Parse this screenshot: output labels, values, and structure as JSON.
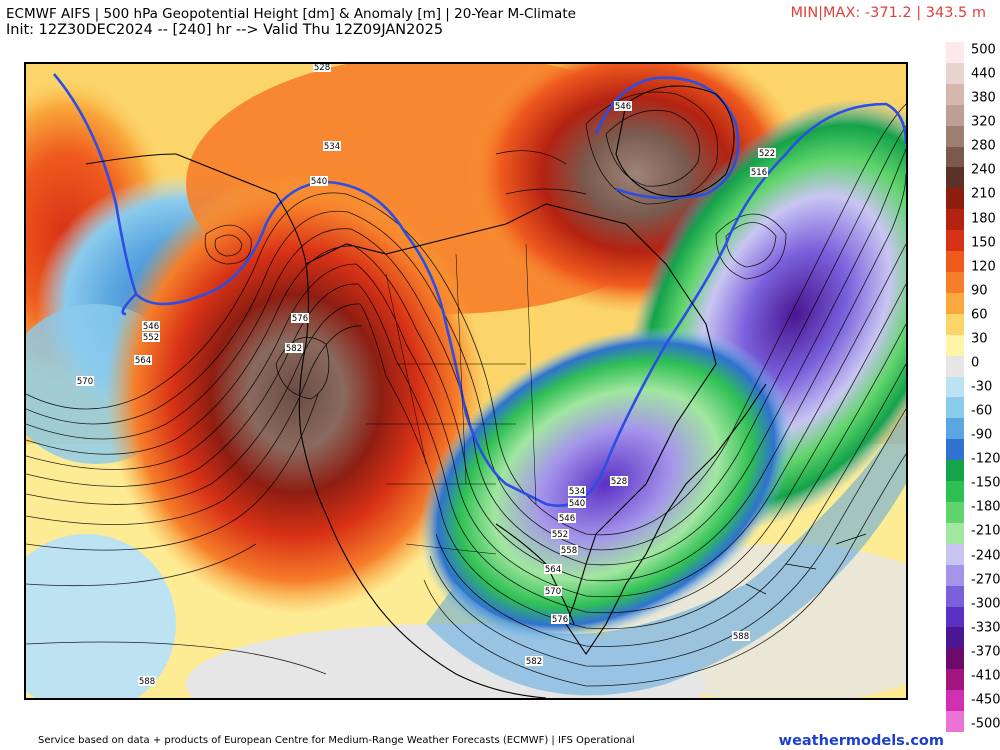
{
  "header": {
    "title": "ECMWF AIFS | 500 hPa Geopotential Height [dm] & Anomaly [m] | 20-Year M-Climate",
    "init_line": "Init: 12Z30DEC2024 -- [240] hr --> Valid Thu 12Z09JAN2025",
    "minmax": "MIN|MAX: -371.2 | 343.5 m"
  },
  "colorbar": {
    "labels": [
      "500",
      "440",
      "380",
      "320",
      "280",
      "240",
      "210",
      "180",
      "150",
      "120",
      "90",
      "60",
      "30",
      "0",
      "-30",
      "-60",
      "-90",
      "-120",
      "-150",
      "-180",
      "-210",
      "-240",
      "-270",
      "-300",
      "-330",
      "-370",
      "-410",
      "-450",
      "-500"
    ],
    "colors": [
      "#fde8ec",
      "#e8d4d0",
      "#d4b8ae",
      "#bda095",
      "#9d7f72",
      "#7a5a4e",
      "#5c3128",
      "#8e1d12",
      "#b42212",
      "#d83216",
      "#ef5a1e",
      "#f67e2a",
      "#f9a83c",
      "#fbd56a",
      "#fff5a8",
      "#e6e6e6",
      "#bde3f3",
      "#8bcbec",
      "#5aa6e0",
      "#2f72cf",
      "#14a24a",
      "#2fc054",
      "#61d56c",
      "#a2e6a0",
      "#c9c5f2",
      "#a495eb",
      "#7a61dc",
      "#5a30c4",
      "#4b1691",
      "#6b0a6b",
      "#a1157f",
      "#cf2fb0",
      "#ea74d4"
    ]
  },
  "map": {
    "contour_labels": [
      "528",
      "534",
      "546",
      "552",
      "564",
      "570",
      "576",
      "582",
      "588",
      "540",
      "546",
      "516",
      "522",
      "528",
      "534",
      "540",
      "546",
      "552",
      "558",
      "564",
      "570",
      "576",
      "582",
      "588"
    ]
  },
  "footer": {
    "credit": "Service based on data + products of European Centre for Medium-Range Weather Forecasts (ECMWF) | IFS Operational",
    "brand": "weathermodels.com"
  },
  "icons": {
    "logo": "weathermodels-logo"
  }
}
